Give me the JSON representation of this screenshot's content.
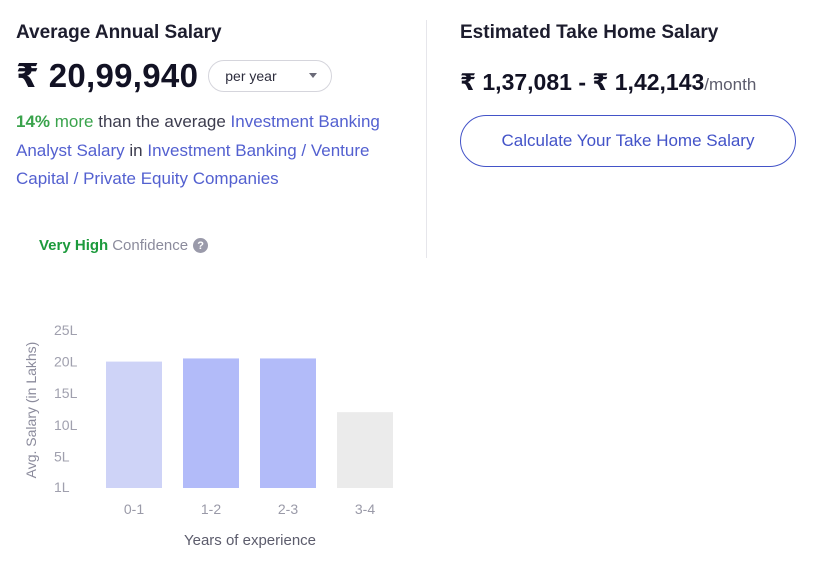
{
  "average_salary": {
    "heading": "Average Annual Salary",
    "value": "₹ 20,99,940",
    "period_selected": "per year",
    "comparison": {
      "percent": "14%",
      "more": " more",
      "text_1": " than the average ",
      "link_1": "Investment Banking Analyst Salary",
      "text_2": " in ",
      "link_2": "Investment Banking / Venture Capital / Private Equity Companies"
    },
    "confidence_level": "Very High",
    "confidence_label": "Confidence",
    "help_glyph": "?"
  },
  "take_home": {
    "heading": "Estimated Take Home Salary",
    "range": "₹ 1,37,081 - ₹ 1,42,143",
    "unit": "/month",
    "button_label": "Calculate Your Take Home Salary"
  },
  "colors": {
    "accent": "#4353c8",
    "link": "#5360d0",
    "positive": "#3aa34c",
    "bar_light": "#ced3f7",
    "bar_highlight": "#b2bbf9",
    "bar_muted": "#ebebeb"
  },
  "chart_data": {
    "type": "bar",
    "categories": [
      "0-1",
      "1-2",
      "2-3",
      "3-4"
    ],
    "values": [
      20,
      20.5,
      20.5,
      12
    ],
    "bar_styles": [
      "light",
      "highlight",
      "highlight",
      "muted"
    ],
    "xlabel": "Years of experience",
    "ylabel": "Avg. Salary (in Lakhs)",
    "y_ticks": [
      {
        "label": "1L",
        "value": 1
      },
      {
        "label": "5L",
        "value": 5
      },
      {
        "label": "10L",
        "value": 10
      },
      {
        "label": "15L",
        "value": 15
      },
      {
        "label": "20L",
        "value": 20
      },
      {
        "label": "25L",
        "value": 25
      }
    ],
    "ylim": [
      0,
      25
    ],
    "grid": false,
    "legend": "none"
  }
}
